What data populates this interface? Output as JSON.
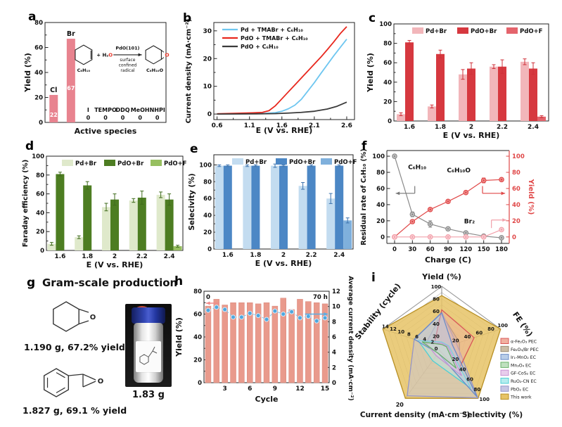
{
  "panels": {
    "a": {
      "letter": "a"
    },
    "b": {
      "letter": "b"
    },
    "c": {
      "letter": "c"
    },
    "d": {
      "letter": "d"
    },
    "e": {
      "letter": "e"
    },
    "f": {
      "letter": "f"
    },
    "g": {
      "letter": "g",
      "title": "Gram-scale production",
      "caption1": "1.190 g, 67.2% yield",
      "caption2": "1.827 g, 69.1 % yield",
      "vial_mass": "1.83 g"
    },
    "h": {
      "letter": "h"
    },
    "i": {
      "letter": "i"
    }
  },
  "chart_data": [
    {
      "panel": "a",
      "type": "bar",
      "xlabel": "Active species",
      "ylabel": "Yield (%)",
      "ylim": [
        0,
        80
      ],
      "yticks": [
        0,
        20,
        40,
        60,
        80
      ],
      "categories": [
        "Cl",
        "Br",
        "I",
        "TEMPO",
        "DDQ",
        "MeOH",
        "NHPI"
      ],
      "values": [
        22,
        67,
        0,
        0,
        0,
        0,
        0
      ],
      "bar_color": "#e8838f",
      "value_label_color": "#ffffff",
      "inset_reaction": {
        "reactant": "C₆H₁₀",
        "reagent_prefix": "+ H₂",
        "reagent_o": "O",
        "arrow_top": "PdO(101)",
        "arrow_bottom": [
          "surface",
          "confined",
          "radical"
        ],
        "product": "C₆H₁₀O",
        "highlight_color": "#e8362a"
      }
    },
    {
      "panel": "b",
      "type": "line",
      "xlabel": "E (V vs. RHE)",
      "ylabel": "Current density (mA·cm⁻²)",
      "xlim": [
        0.55,
        2.72
      ],
      "ylim": [
        -2,
        33
      ],
      "xticks": [
        "0.6",
        "1.1",
        "1.6",
        "2.1",
        "2.6"
      ],
      "xtick_vals": [
        0.6,
        1.1,
        1.6,
        2.1,
        2.6
      ],
      "yticks": [
        0,
        10,
        20,
        30
      ],
      "legend_position": "top-left",
      "series": [
        {
          "name": "Pd + TMABr + C₆H₁₀",
          "color": "#6ec6f0",
          "x": [
            0.6,
            0.8,
            1.0,
            1.2,
            1.35,
            1.5,
            1.6,
            1.7,
            1.8,
            1.9,
            2.0,
            2.1,
            2.2,
            2.3,
            2.4,
            2.5,
            2.6
          ],
          "y": [
            0.05,
            0.08,
            0.1,
            0.15,
            0.25,
            0.5,
            1.0,
            1.9,
            3.2,
            5.3,
            8.3,
            11.3,
            14.6,
            17.8,
            21.0,
            24.0,
            27.0
          ]
        },
        {
          "name": "PdO + TMABr + C₆H₁₀",
          "color": "#e8281e",
          "x": [
            0.6,
            0.8,
            1.0,
            1.15,
            1.3,
            1.4,
            1.5,
            1.6,
            1.7,
            1.8,
            1.9,
            2.0,
            2.1,
            2.2,
            2.3,
            2.4,
            2.5,
            2.6
          ],
          "y": [
            0.1,
            0.2,
            0.35,
            0.45,
            0.6,
            1.2,
            3.0,
            5.5,
            8.0,
            10.5,
            13.0,
            15.5,
            18.0,
            20.5,
            23.2,
            26.0,
            29.0,
            31.5
          ]
        },
        {
          "name": "PdO + C₆H₁₀",
          "color": "#3a3a3a",
          "x": [
            0.6,
            0.9,
            1.2,
            1.5,
            1.7,
            1.9,
            2.1,
            2.3,
            2.45,
            2.6
          ],
          "y": [
            0.0,
            0.03,
            0.08,
            0.15,
            0.35,
            0.6,
            1.0,
            1.8,
            2.8,
            4.3
          ]
        }
      ]
    },
    {
      "panel": "c",
      "type": "grouped-bar",
      "xlabel": "E (V vs. RHE)",
      "ylabel": "Yield (%)",
      "ylim": [
        0,
        100
      ],
      "yticks": [
        0,
        20,
        40,
        60,
        80,
        100
      ],
      "categories": [
        "1.6",
        "1.8",
        "2",
        "2.2",
        "2.4"
      ],
      "error_color": "#cf3038",
      "series": [
        {
          "name": "Pd+Br",
          "color": "#f2b6ba",
          "values": [
            7,
            15,
            48,
            56,
            61
          ],
          "errors": [
            1.5,
            1.5,
            5,
            2,
            3
          ]
        },
        {
          "name": "PdO+Br",
          "color": "#d6383f",
          "values": [
            81,
            69,
            54,
            56,
            54
          ],
          "errors": [
            2,
            4,
            6,
            7,
            6
          ]
        },
        {
          "name": "PdO+F",
          "color": "#e4646c",
          "values": [
            0,
            0,
            0,
            0,
            4.5
          ],
          "errors": [
            0,
            0,
            0,
            0,
            1
          ]
        }
      ]
    },
    {
      "panel": "d",
      "type": "grouped-bar",
      "xlabel": "E (V vs. RHE)",
      "ylabel": "Faraday efficiency (%)",
      "ylim": [
        0,
        100
      ],
      "yticks": [
        0,
        20,
        40,
        60,
        80,
        100
      ],
      "categories": [
        "1.6",
        "1.8",
        "2",
        "2.2",
        "2.4"
      ],
      "error_color": "#3f6b1c",
      "series": [
        {
          "name": "Pd+Br",
          "color": "#dfe9cb",
          "values": [
            7,
            14,
            46,
            53,
            59
          ],
          "errors": [
            1.5,
            1.5,
            4,
            2,
            3
          ]
        },
        {
          "name": "PdO+Br",
          "color": "#4d7d22",
          "values": [
            81,
            69,
            54,
            56,
            54
          ],
          "errors": [
            2,
            4,
            6,
            7,
            6
          ]
        },
        {
          "name": "PdO+F",
          "color": "#97bf60",
          "values": [
            0,
            0,
            0,
            0,
            4.5
          ],
          "errors": [
            0,
            0,
            0,
            0,
            1
          ]
        }
      ]
    },
    {
      "panel": "e",
      "type": "grouped-bar",
      "xlabel": "E (V vs. RHE)",
      "ylabel": "Selecivity (%)",
      "ylim": [
        0,
        112
      ],
      "yticks": [
        0,
        20,
        40,
        60,
        80,
        100
      ],
      "categories": [
        "1.6",
        "1.8",
        "2",
        "2.2",
        "2.4"
      ],
      "error_color": "#3c72ad",
      "series": [
        {
          "name": "Pd+Br",
          "color": "#c3dcf0",
          "values": [
            99,
            99,
            99,
            75,
            60
          ],
          "errors": [
            1,
            1,
            2,
            4,
            6
          ]
        },
        {
          "name": "PdO+Br",
          "color": "#4c87c5",
          "values": [
            99,
            99,
            99,
            99,
            99
          ],
          "errors": [
            1,
            1,
            1,
            1,
            1
          ]
        },
        {
          "name": "PdO+F",
          "color": "#7fb0dc",
          "values": [
            0,
            0,
            0,
            0,
            34
          ],
          "errors": [
            0,
            0,
            0,
            0,
            3
          ]
        }
      ]
    },
    {
      "panel": "f",
      "type": "dual-line",
      "xlabel": "Charge (C)",
      "ylabel_left": "Residual rate of C₆H₁₀ (%)",
      "ylabel_right": "Yield (%)",
      "xlim": [
        -13,
        193
      ],
      "ylim": [
        -8,
        107
      ],
      "xticks": [
        0,
        30,
        60,
        90,
        120,
        150,
        180
      ],
      "yticks_left": [
        0,
        20,
        40,
        60,
        80,
        100
      ],
      "yticks_right": [
        0,
        20,
        40,
        60,
        80,
        100
      ],
      "right_axis_color": "#e04848",
      "x": [
        0,
        30,
        60,
        90,
        120,
        150,
        180
      ],
      "series": [
        {
          "name": "C₆H₁₀",
          "color": "#8a8a8a",
          "marker_fill": "#c9c9c9",
          "y": [
            100,
            28,
            16,
            10,
            5,
            1,
            -1
          ],
          "errors": [
            2,
            3,
            4,
            2,
            1.5,
            1,
            1
          ]
        },
        {
          "name": "C₆H₁₀O",
          "color": "#e04848",
          "marker_fill": "#ef9a9a",
          "y": [
            0,
            19,
            34,
            44,
            55,
            70,
            71
          ],
          "errors": [
            1,
            2,
            2,
            2,
            2,
            3,
            2
          ]
        },
        {
          "name": "Br₂",
          "color": "#f2a0aa",
          "marker_fill": "#fbd5da",
          "y": [
            0,
            0,
            0,
            0,
            0,
            0,
            9
          ],
          "errors": [
            0.5,
            0.5,
            0.5,
            0.5,
            0.5,
            0.5,
            1
          ]
        }
      ],
      "annotations": [
        {
          "text": "C₆H₁₀",
          "x": 38,
          "y": 84
        },
        {
          "text": "C₆H₁₀O",
          "x": 108,
          "y": 80
        },
        {
          "text": "Br₂",
          "x": 126,
          "y": 17
        }
      ]
    },
    {
      "panel": "h",
      "type": "bar-line",
      "xlabel": "Cycle",
      "ylabel_left": "Yield (%)",
      "ylabel_right": "Average current density (mA·cm⁻²)",
      "ylim_left": [
        0,
        80
      ],
      "yticks_left": [
        0,
        20,
        40,
        60,
        80
      ],
      "ylim_right": [
        0,
        12
      ],
      "yticks_right": [
        0,
        2,
        4,
        6,
        8,
        10,
        12
      ],
      "xticks": [
        3,
        6,
        9,
        12,
        15
      ],
      "bar_color": "#e99a8c",
      "dot_color": "#4da7e0",
      "dash_color": "#86c6ee",
      "cycles": [
        1,
        2,
        3,
        4,
        5,
        6,
        7,
        8,
        9,
        10,
        11,
        12,
        13,
        14,
        15
      ],
      "yield_values": [
        67,
        73,
        68,
        70,
        70,
        70,
        69,
        70,
        67,
        74,
        64,
        73,
        71,
        70,
        69
      ],
      "current_density": [
        9.5,
        9.9,
        9.6,
        8.6,
        8.6,
        9.1,
        8.8,
        8.3,
        9.4,
        9.0,
        9.3,
        8.5,
        8.7,
        8.1,
        8.5
      ],
      "time_start": "0",
      "time_end": "70 h"
    },
    {
      "panel": "i",
      "type": "radar",
      "axes": [
        {
          "label": "Yield (%)",
          "max": 100,
          "ticks": [
            0,
            20,
            40,
            60,
            80,
            100
          ]
        },
        {
          "label": "FE (%)",
          "max": 100,
          "ticks": [
            20,
            40,
            60,
            80,
            100
          ]
        },
        {
          "label": "Selectivity (%)",
          "max": 100,
          "ticks": [
            20,
            40,
            60,
            80,
            100
          ]
        },
        {
          "label": "Current density (mA·cm⁻²)",
          "max": 20,
          "ticks": [
            20
          ]
        },
        {
          "label": "Stability (cycle)",
          "max": 15,
          "ticks": [
            2,
            4,
            6,
            8,
            10,
            12,
            14
          ]
        }
      ],
      "series": [
        {
          "name": "α-Fe₂O₃ PEC",
          "color": "#d95757",
          "fill": "#f0b0a0",
          "values": [
            62,
            55,
            45,
            1,
            2
          ]
        },
        {
          "name": "Fe₂O₃/Br PEC",
          "color": "#9a8a74",
          "fill": "#cbbda5",
          "values": [
            55,
            30,
            50,
            2,
            4
          ]
        },
        {
          "name": "Ir₁-MnO₂ EC",
          "color": "#6b8cc7",
          "fill": "#b9cde8",
          "values": [
            57,
            18,
            97,
            2,
            7
          ]
        },
        {
          "name": "Mn₃O₄ EC",
          "color": "#69b069",
          "fill": "#bfe0bf",
          "values": [
            6,
            8,
            40,
            2,
            5
          ]
        },
        {
          "name": "GF-CoS₂ EC",
          "color": "#c893d2",
          "fill": "#e8cdec",
          "values": [
            8,
            10,
            55,
            3,
            4
          ]
        },
        {
          "name": "RuO₂-CN EC",
          "color": "#4ecfd4",
          "fill": "#b5ecee",
          "values": [
            10,
            12,
            80,
            5,
            6
          ]
        },
        {
          "name": "PbO₂ EC",
          "color": "#9595c8",
          "fill": "#c6c6e4",
          "values": [
            58,
            25,
            99,
            19,
            7
          ]
        },
        {
          "name": "This work",
          "color": "#b99125",
          "fill": "#e6c366",
          "values": [
            85,
            100,
            100,
            20,
            15
          ]
        }
      ],
      "draw_order": [
        7,
        1,
        6,
        0,
        5,
        2,
        4,
        3
      ]
    }
  ]
}
